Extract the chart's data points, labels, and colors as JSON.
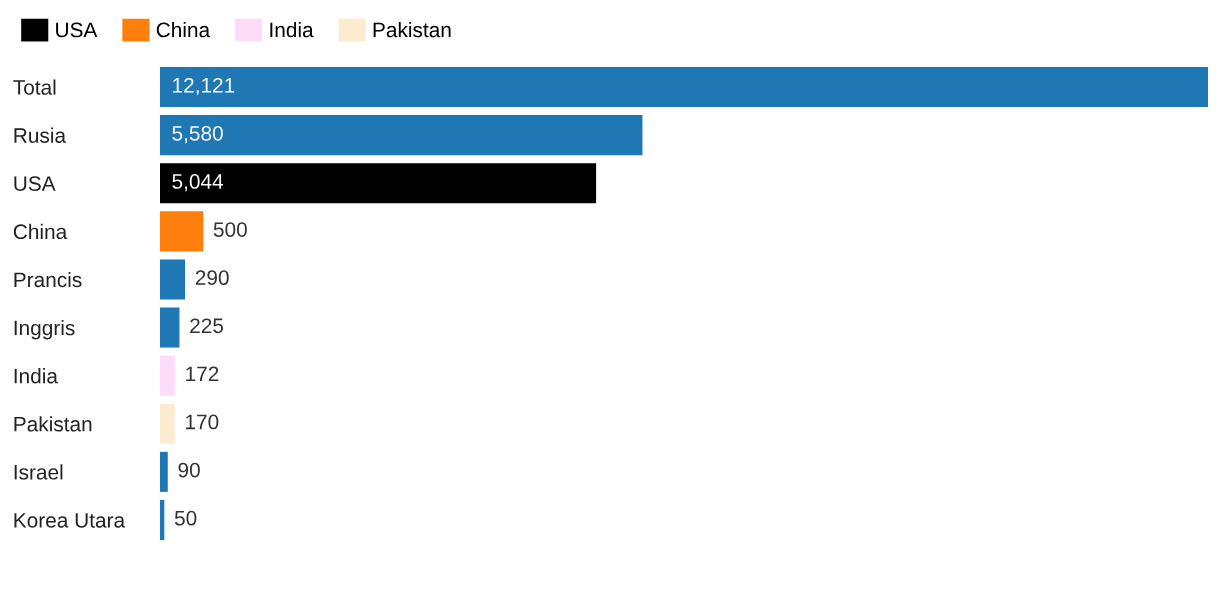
{
  "chart_data": {
    "type": "bar",
    "orientation": "horizontal",
    "legend": "top left",
    "categories": [
      "Total",
      "Rusia",
      "USA",
      "China",
      "Prancis",
      "Inggris",
      "India",
      "Pakistan",
      "Israel",
      "Korea Utara"
    ],
    "series": [
      {
        "color": "#1f77b4",
        "values": [
          12121,
          5580,
          null,
          null,
          290,
          225,
          null,
          null,
          90,
          50
        ],
        "value_labels": [
          "12,121",
          "5,580",
          null,
          null,
          "290",
          "225",
          null,
          null,
          "90",
          "50"
        ]
      },
      {
        "name": "USA",
        "color": "#000000",
        "values": [
          null,
          null,
          5044,
          null,
          null,
          null,
          null,
          null,
          null,
          null
        ],
        "value_labels": [
          null,
          null,
          "5,044",
          null,
          null,
          null,
          null,
          null,
          null,
          null
        ]
      },
      {
        "name": "China",
        "color": "#ff7f0e",
        "values": [
          null,
          null,
          null,
          500,
          null,
          null,
          null,
          null,
          null,
          null
        ],
        "value_labels": [
          null,
          null,
          null,
          "500",
          null,
          null,
          null,
          null,
          null,
          null
        ]
      },
      {
        "name": "India",
        "color": "#fddcfa",
        "values": [
          null,
          null,
          null,
          null,
          null,
          null,
          172,
          null,
          null,
          null
        ],
        "value_labels": [
          null,
          null,
          null,
          null,
          null,
          null,
          "172",
          null,
          null,
          null
        ]
      },
      {
        "name": "Pakistan",
        "color": "#fdebd0",
        "values": [
          null,
          null,
          null,
          null,
          null,
          null,
          null,
          170,
          null,
          null
        ],
        "value_labels": [
          null,
          null,
          null,
          null,
          null,
          null,
          null,
          "170",
          null,
          null
        ]
      }
    ]
  }
}
